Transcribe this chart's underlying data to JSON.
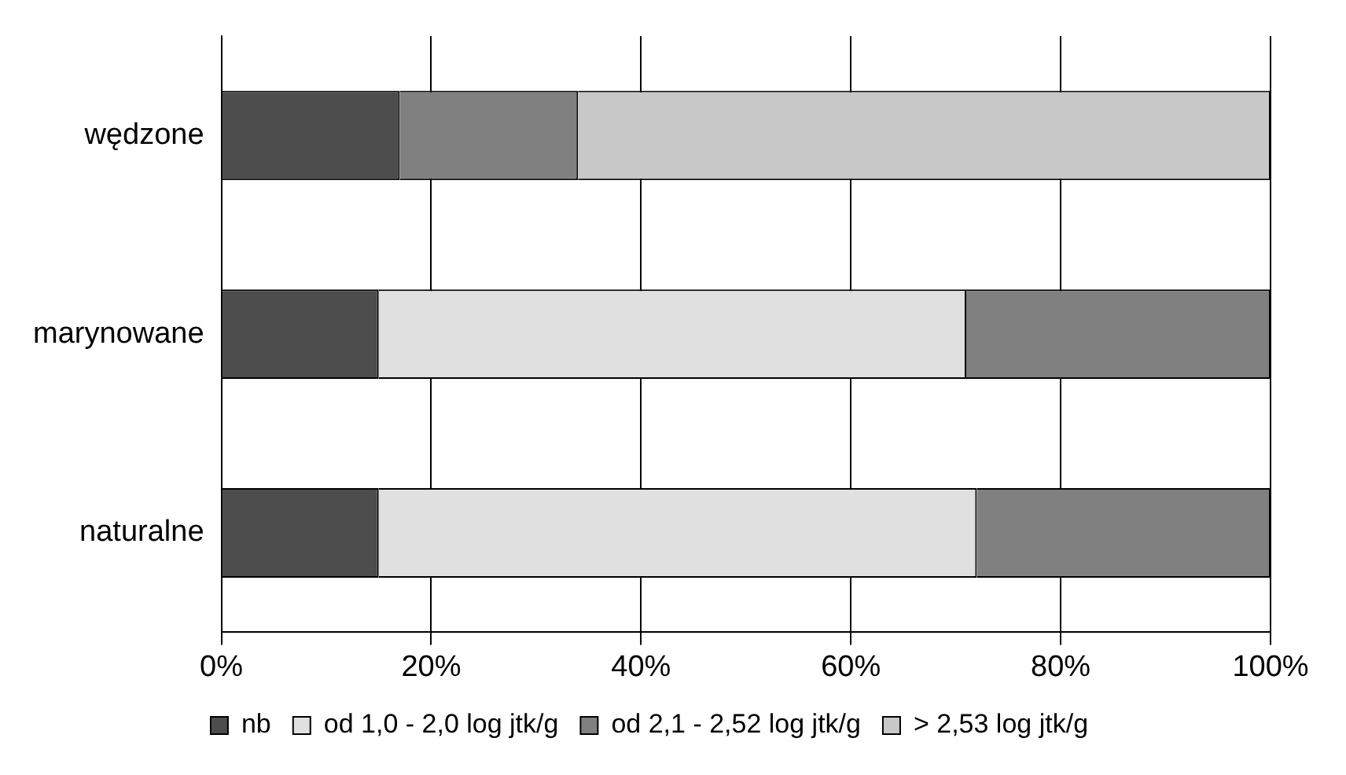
{
  "chart_data": {
    "type": "bar",
    "orientation": "horizontal",
    "stacked": true,
    "categories": [
      "wędzone",
      "marynowane",
      "naturalne"
    ],
    "series": [
      {
        "name": "nb",
        "color": "#4d4d4d",
        "values": [
          17,
          15,
          15
        ]
      },
      {
        "name": "od 1,0 - 2,0 log jtk/g",
        "color": "#e0e0e0",
        "values": [
          0,
          56,
          57
        ]
      },
      {
        "name": "od 2,1 - 2,52 log jtk/g",
        "color": "#808080",
        "values": [
          17,
          29,
          28
        ]
      },
      {
        "name": "> 2,53 log jtk/g",
        "color": "#c8c8c8",
        "values": [
          66,
          0,
          0
        ]
      }
    ],
    "xlim": [
      0,
      100
    ],
    "xticks": [
      {
        "value": 0,
        "label": "0%"
      },
      {
        "value": 20,
        "label": "20%"
      },
      {
        "value": 40,
        "label": "40%"
      },
      {
        "value": 60,
        "label": "60%"
      },
      {
        "value": 80,
        "label": "80%"
      },
      {
        "value": 100,
        "label": "100%"
      }
    ],
    "grid": "x",
    "legend": "bottom"
  }
}
